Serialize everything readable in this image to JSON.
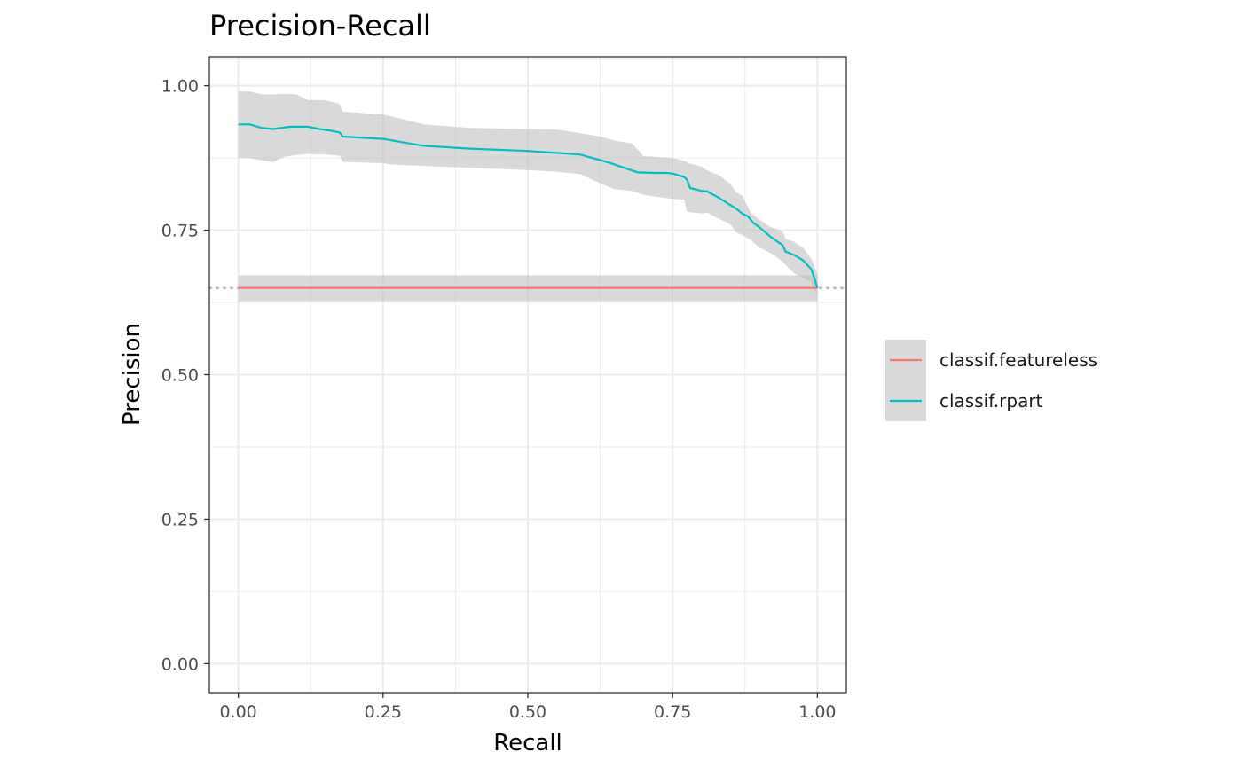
{
  "chart_data": {
    "type": "line",
    "title": "Precision-Recall",
    "xlabel": "Recall",
    "ylabel": "Precision",
    "xlim": [
      -0.05,
      1.05
    ],
    "ylim": [
      -0.05,
      1.05
    ],
    "x_ticks": [
      0,
      0.25,
      0.5,
      0.75,
      1
    ],
    "x_tick_labels": [
      "0.00",
      "0.25",
      "0.50",
      "0.75",
      "1.00"
    ],
    "y_ticks": [
      0,
      0.25,
      0.5,
      0.75,
      1
    ],
    "y_tick_labels": [
      "0.00",
      "0.25",
      "0.50",
      "0.75",
      "1.00"
    ],
    "grid": true,
    "legend_position": "right",
    "baseline": {
      "y": 0.65,
      "style": "dotted",
      "color": "#bdbdbd"
    },
    "series": [
      {
        "name": "classif.featureless",
        "color": "#F8766D",
        "line": {
          "x": [
            0,
            1
          ],
          "y": [
            0.65,
            0.65
          ]
        },
        "band": {
          "x": [
            0,
            1
          ],
          "lower": [
            0.627,
            0.627
          ],
          "upper": [
            0.672,
            0.672
          ]
        }
      },
      {
        "name": "classif.rpart",
        "color": "#00BFC4",
        "line": {
          "x": [
            0,
            0.02,
            0.04,
            0.06,
            0.09,
            0.12,
            0.14,
            0.16,
            0.175,
            0.18,
            0.25,
            0.32,
            0.4,
            0.5,
            0.59,
            0.64,
            0.69,
            0.72,
            0.74,
            0.75,
            0.77,
            0.775,
            0.78,
            0.8,
            0.81,
            0.83,
            0.86,
            0.87,
            0.88,
            0.89,
            0.9,
            0.92,
            0.94,
            0.945,
            0.96,
            0.975,
            0.99,
            1.0
          ],
          "y": [
            0.933,
            0.933,
            0.927,
            0.925,
            0.929,
            0.929,
            0.925,
            0.922,
            0.919,
            0.912,
            0.908,
            0.896,
            0.891,
            0.887,
            0.881,
            0.867,
            0.85,
            0.849,
            0.849,
            0.848,
            0.842,
            0.837,
            0.823,
            0.818,
            0.817,
            0.806,
            0.787,
            0.779,
            0.774,
            0.762,
            0.755,
            0.738,
            0.724,
            0.713,
            0.707,
            0.698,
            0.682,
            0.65
          ]
        },
        "band": {
          "x": [
            0,
            0.02,
            0.04,
            0.06,
            0.08,
            0.1,
            0.12,
            0.15,
            0.175,
            0.18,
            0.25,
            0.26,
            0.32,
            0.4,
            0.5,
            0.55,
            0.59,
            0.63,
            0.65,
            0.68,
            0.7,
            0.72,
            0.75,
            0.77,
            0.775,
            0.78,
            0.8,
            0.81,
            0.83,
            0.85,
            0.86,
            0.87,
            0.88,
            0.885,
            0.9,
            0.92,
            0.94,
            0.945,
            0.96,
            0.975,
            0.99,
            1.0
          ],
          "upper": [
            0.99,
            0.99,
            0.985,
            0.985,
            0.986,
            0.985,
            0.975,
            0.975,
            0.968,
            0.955,
            0.95,
            0.948,
            0.933,
            0.927,
            0.925,
            0.924,
            0.918,
            0.911,
            0.905,
            0.9,
            0.878,
            0.877,
            0.875,
            0.87,
            0.868,
            0.865,
            0.86,
            0.853,
            0.845,
            0.83,
            0.815,
            0.81,
            0.79,
            0.78,
            0.768,
            0.755,
            0.748,
            0.735,
            0.73,
            0.72,
            0.7,
            0.675
          ],
          "lower": [
            0.875,
            0.875,
            0.871,
            0.868,
            0.877,
            0.88,
            0.882,
            0.881,
            0.879,
            0.868,
            0.866,
            0.864,
            0.861,
            0.858,
            0.854,
            0.851,
            0.847,
            0.829,
            0.821,
            0.818,
            0.811,
            0.808,
            0.804,
            0.803,
            0.782,
            0.781,
            0.779,
            0.78,
            0.77,
            0.76,
            0.746,
            0.742,
            0.735,
            0.733,
            0.72,
            0.71,
            0.696,
            0.69,
            0.675,
            0.668,
            0.66,
            0.635
          ]
        }
      }
    ]
  }
}
